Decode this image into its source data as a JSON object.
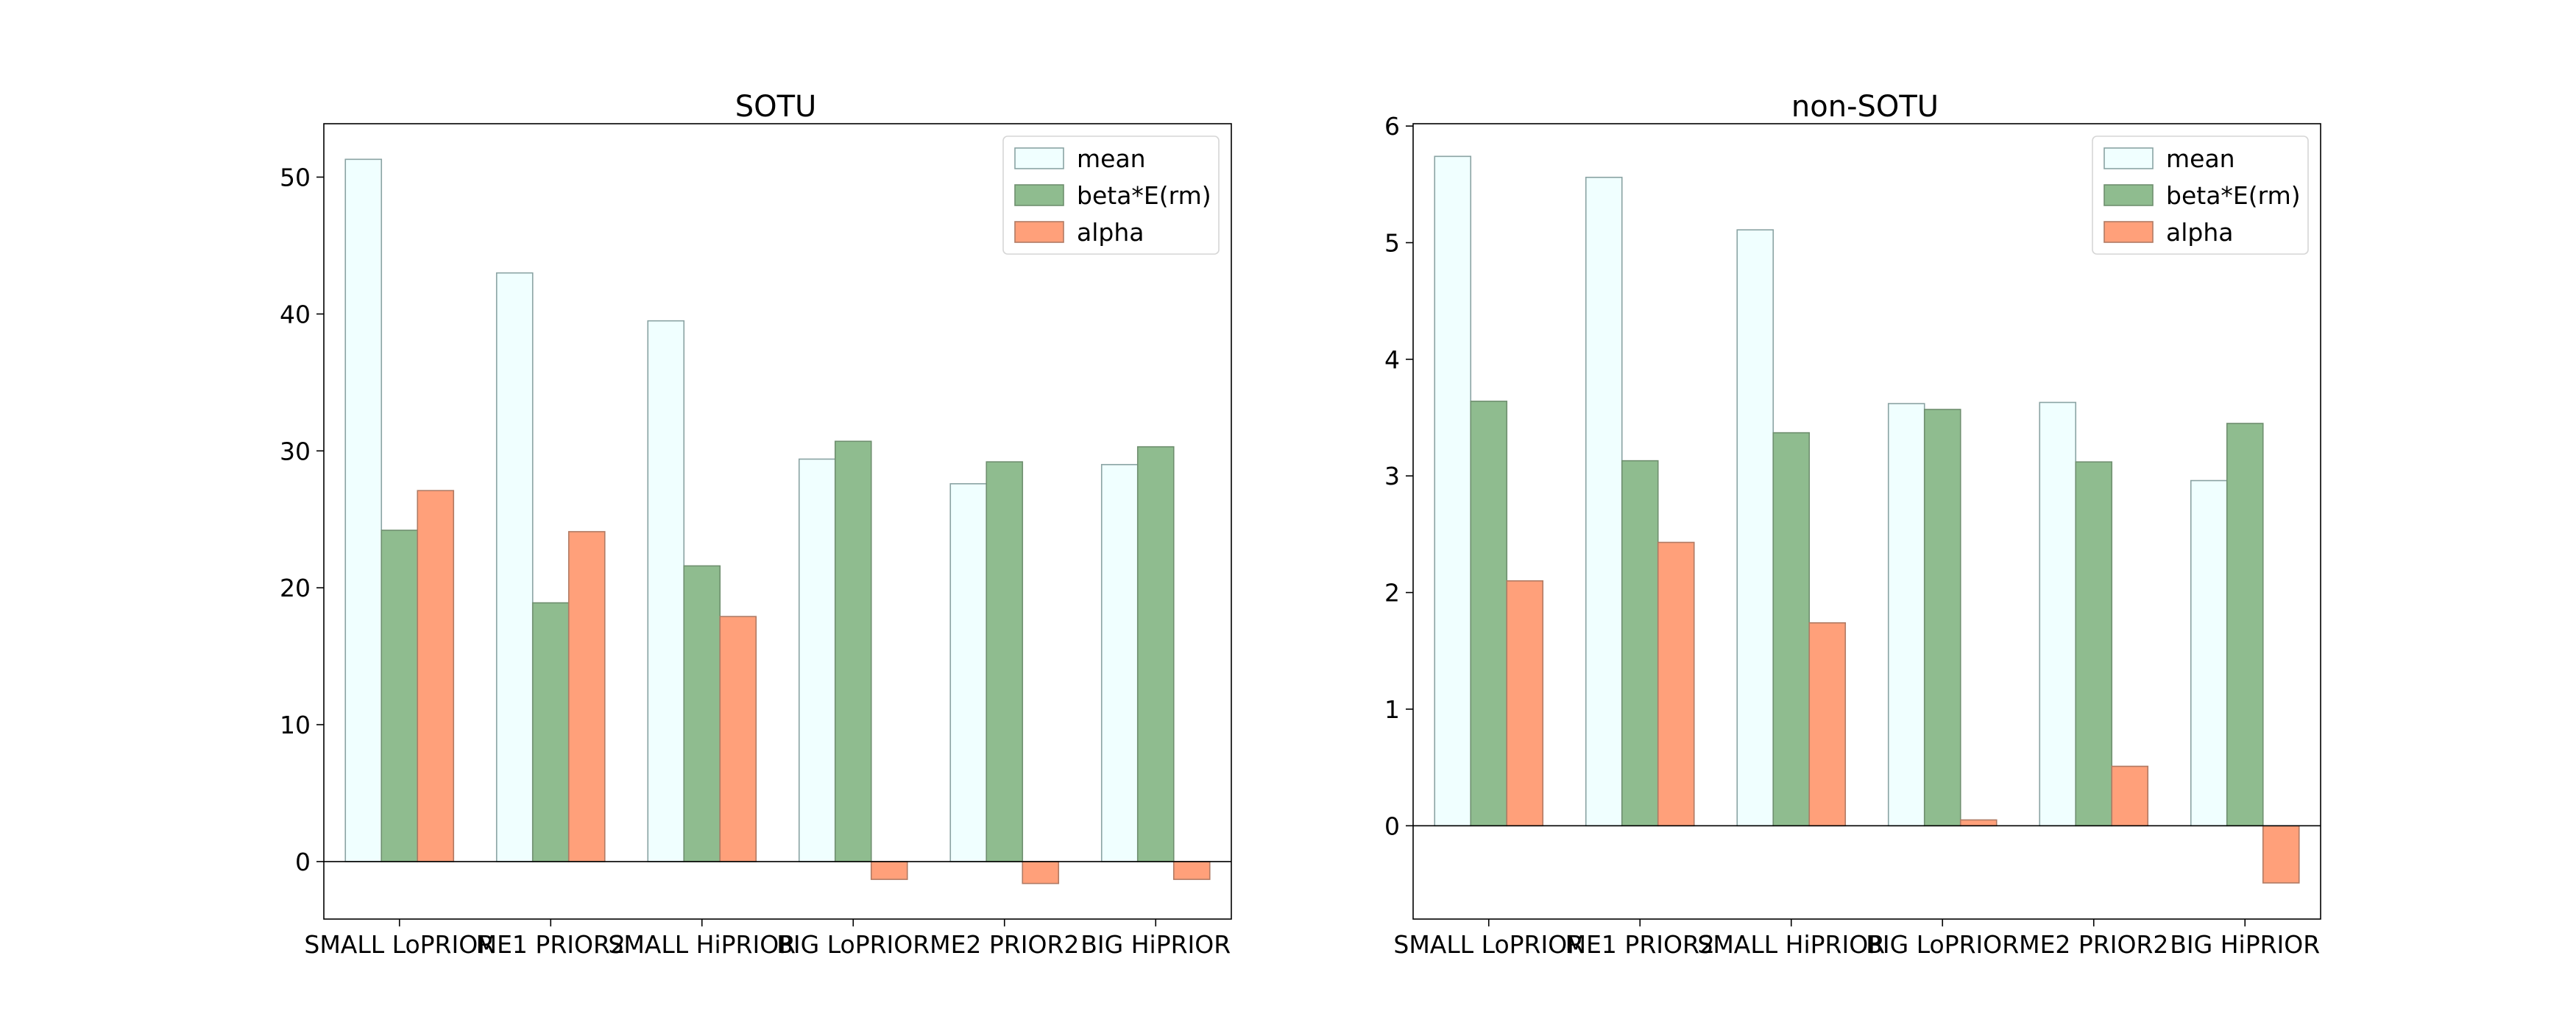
{
  "chart_data": [
    {
      "type": "bar",
      "title": "SOTU",
      "categories": [
        "SMALL LoPRIOR",
        "ME1 PRIOR2",
        "SMALL HiPRIOR",
        "BIG LoPRIOR",
        "ME2 PRIOR2",
        "BIG HiPRIOR"
      ],
      "series": [
        {
          "name": "mean",
          "color": "#f0ffff",
          "edge": "#8aa3a3",
          "values": [
            51.3,
            43.0,
            39.5,
            29.4,
            27.6,
            29.0
          ]
        },
        {
          "name": "beta*E(rm)",
          "color": "#8fbc8f",
          "edge": "#6f8f6f",
          "values": [
            24.2,
            18.9,
            21.6,
            30.7,
            29.2,
            30.3
          ]
        },
        {
          "name": "alpha",
          "color": "#ffa07a",
          "edge": "#b07a63",
          "values": [
            27.1,
            24.1,
            17.9,
            -1.3,
            -1.6,
            -1.3
          ]
        }
      ],
      "ylim": [
        -4.2,
        53.9
      ],
      "yticks": [
        0,
        10,
        20,
        30,
        40,
        50
      ],
      "legend_position": "upper right",
      "grid": false,
      "xlabel": "",
      "ylabel": ""
    },
    {
      "type": "bar",
      "title": "non-SOTU",
      "categories": [
        "SMALL LoPRIOR",
        "ME1 PRIOR2",
        "SMALL HiPRIOR",
        "BIG LoPRIOR",
        "ME2 PRIOR2",
        "BIG HiPRIOR"
      ],
      "series": [
        {
          "name": "mean",
          "color": "#f0ffff",
          "edge": "#8aa3a3",
          "values": [
            5.74,
            5.56,
            5.11,
            3.62,
            3.63,
            2.96
          ]
        },
        {
          "name": "beta*E(rm)",
          "color": "#8fbc8f",
          "edge": "#6f8f6f",
          "values": [
            3.64,
            3.13,
            3.37,
            3.57,
            3.12,
            3.45
          ]
        },
        {
          "name": "alpha",
          "color": "#ffa07a",
          "edge": "#b07a63",
          "values": [
            2.1,
            2.43,
            1.74,
            0.05,
            0.51,
            -0.49
          ]
        }
      ],
      "ylim": [
        -0.8,
        6.02
      ],
      "yticks": [
        0,
        1,
        2,
        3,
        4,
        5,
        6
      ],
      "legend_position": "upper right",
      "grid": false,
      "xlabel": "",
      "ylabel": ""
    }
  ]
}
